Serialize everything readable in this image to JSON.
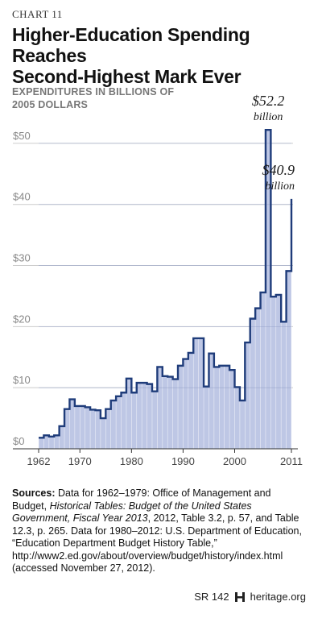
{
  "header": {
    "chart_label": "CHART 11",
    "title_line1": "Higher-Education Spending Reaches",
    "title_line2": "Second-Highest Mark Ever",
    "axis_label_line1": "EXPENDITURES IN BILLIONS OF",
    "axis_label_line2": "2005 DOLLARS"
  },
  "chart_data": {
    "type": "area",
    "title": "Higher-Education Spending Reaches Second-Highest Mark Ever",
    "ylabel": "EXPENDITURES IN BILLIONS OF 2005 DOLLARS",
    "xlabel": "",
    "step": true,
    "x": [
      1962,
      1963,
      1964,
      1965,
      1966,
      1967,
      1968,
      1969,
      1970,
      1971,
      1972,
      1973,
      1974,
      1975,
      1976,
      1977,
      1978,
      1979,
      1980,
      1981,
      1982,
      1983,
      1984,
      1985,
      1986,
      1987,
      1988,
      1989,
      1990,
      1991,
      1992,
      1993,
      1994,
      1995,
      1996,
      1997,
      1998,
      1999,
      2000,
      2001,
      2002,
      2003,
      2004,
      2005,
      2006,
      2007,
      2008,
      2009,
      2010,
      2011
    ],
    "values": [
      1.8,
      2.2,
      2.0,
      2.2,
      3.7,
      6.5,
      8.1,
      7.0,
      7.0,
      6.8,
      6.4,
      6.3,
      5.0,
      6.5,
      7.9,
      8.6,
      9.2,
      11.5,
      9.2,
      10.8,
      10.8,
      10.6,
      9.4,
      13.4,
      11.9,
      11.8,
      11.4,
      13.6,
      14.7,
      15.7,
      18.1,
      18.1,
      10.2,
      15.6,
      13.4,
      13.6,
      13.6,
      12.9,
      10.1,
      7.9,
      17.4,
      21.3,
      23.0,
      25.6,
      52.2,
      24.9,
      25.2,
      20.8,
      29.1,
      40.9
    ],
    "xlim": [
      1962,
      2011
    ],
    "ylim": [
      0,
      55
    ],
    "x_ticks": [
      1962,
      1970,
      1980,
      1990,
      2000,
      2011
    ],
    "x_tick_labels": [
      "1962",
      "1970",
      "1980",
      "1990",
      "2000",
      "2011"
    ],
    "y_ticks": [
      0,
      10,
      20,
      30,
      40,
      50
    ],
    "y_tick_labels": [
      "$0",
      "$10",
      "$20",
      "$30",
      "$40",
      "$50"
    ],
    "grid": true,
    "annotations": [
      {
        "x": 2006,
        "y": 52.2,
        "value": "$52.2",
        "unit": "billion"
      },
      {
        "x": 2011,
        "y": 40.9,
        "value": "$40.9",
        "unit": "billion"
      }
    ],
    "colors": {
      "line": "#1f3c7a",
      "fill": "#b3bde0",
      "grid": "#cccccc"
    }
  },
  "sources": {
    "label": "Sources:",
    "text_1": " Data for 1962–1979: Office of Management and Budget, ",
    "italic_1": "Historical Tables: Budget of the United States Government, Fiscal Year 2013",
    "text_2": ", 2012, Table 3.2, p. 57, and Table 12.3, p. 265. Data for 1980–2012: U.S. Department of Education, “Education Department Budget History Table,” http://www2.ed.gov/about/overview/budget/history/index.html (accessed November 27, 2012)."
  },
  "footer": {
    "report_id": "SR 142",
    "site": "heritage.org"
  }
}
